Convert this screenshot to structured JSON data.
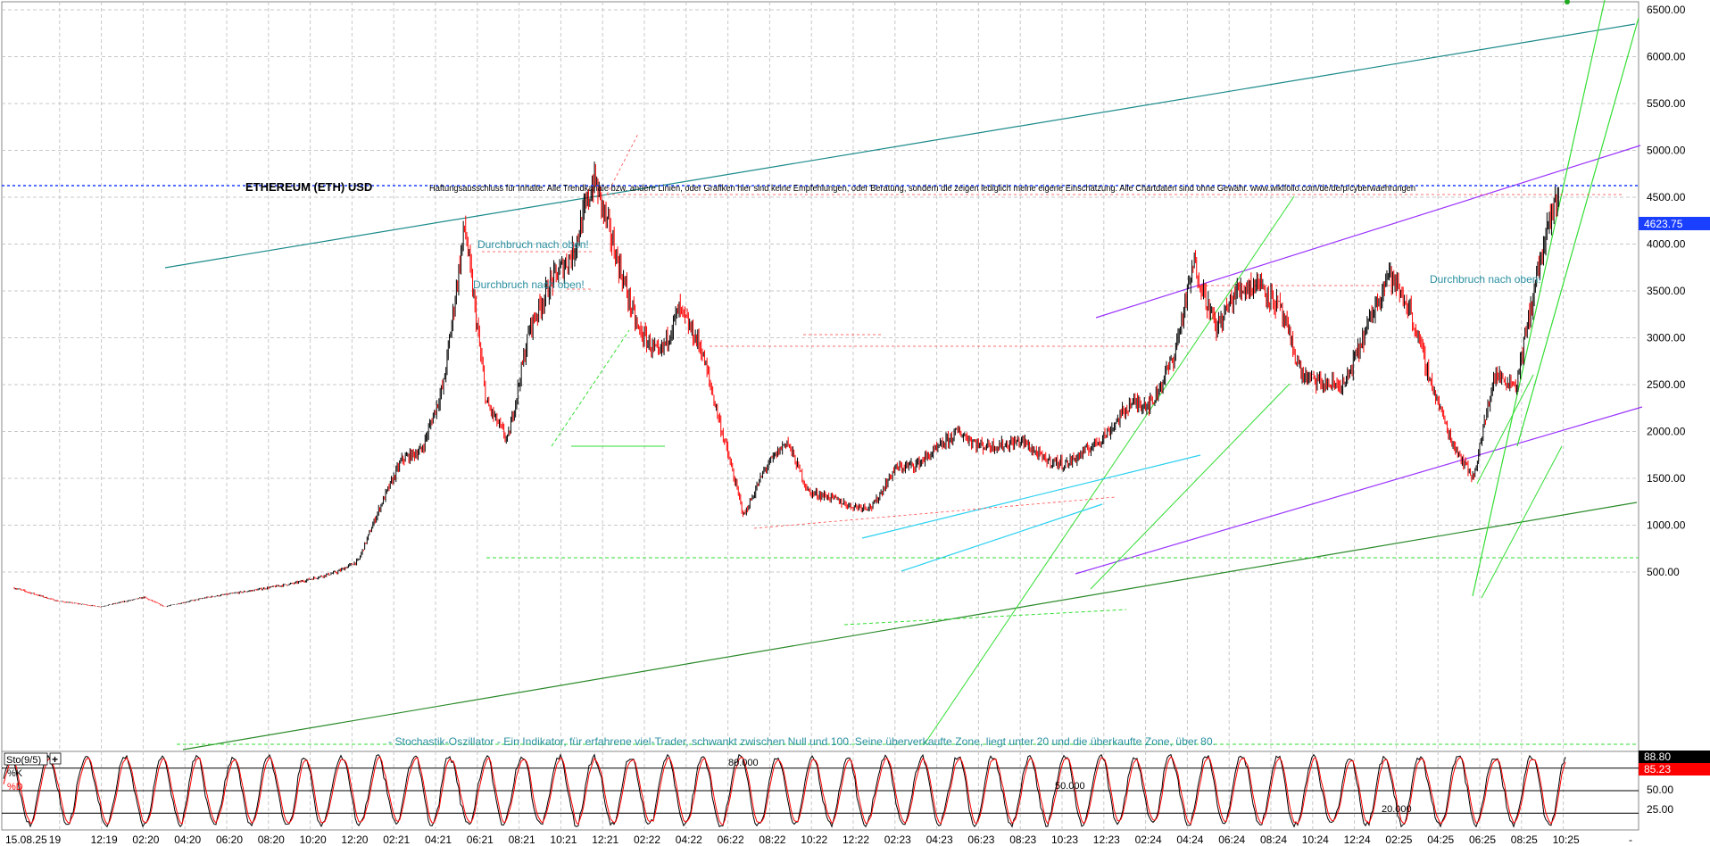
{
  "chart_data": {
    "type": "line",
    "title": "ETHEREUM (ETH) USD",
    "disclaimer": "Haftungsausschluss für Inhalte: Alle Trendkanäle bzw. andere Linien, oder Grafiken hier sind keine Empfehlungen, oder Beratung, sondern die zeigen lediglich meine eigene Einschätzung. Alle Chartdaten sind ohne Gewähr. www.wikifolio.com/de/de/p/cyberwaehrungen",
    "annotations": [
      "Durchbruch nach oben!",
      "Durchbruch nach oben!",
      "Durchbruch nach oben!"
    ],
    "oscillator_note": "- Stochastik-Oszillator - Ein Indikator, für erfahrene viel-Trader, schwankt zwischen Null und 100. Seine überverkaufte Zone, liegt unter 20 und die überkaufte Zone, über 80.",
    "last_price_label": "4623.75",
    "last_price": 4623.75,
    "y_ticks": [
      "6500.00",
      "6000.00",
      "5500.00",
      "5000.00",
      "4500.00",
      "4000.00",
      "3500.00",
      "3000.00",
      "2500.00",
      "2000.00",
      "1500.00",
      "1000.00",
      "500.00"
    ],
    "y_tick_values": [
      6500,
      6000,
      5500,
      5000,
      4500,
      4000,
      3500,
      3000,
      2500,
      2000,
      1500,
      1000,
      500
    ],
    "x_ticks": [
      "15.08.25",
      "19",
      "12:19",
      "02:20",
      "04:20",
      "06:20",
      "08:20",
      "10:20",
      "12:20",
      "02:21",
      "04:21",
      "06:21",
      "08:21",
      "10:21",
      "12:21",
      "02:22",
      "04:22",
      "06:22",
      "08:22",
      "10:22",
      "12:22",
      "02:23",
      "04:23",
      "06:23",
      "08:23",
      "10:23",
      "12:23",
      "02:24",
      "04:24",
      "06:24",
      "08:24",
      "10:24",
      "12:24",
      "02:25",
      "04:25",
      "06:25",
      "08:25",
      "10:25",
      "-"
    ],
    "ylim": [
      0,
      6650
    ],
    "series": [
      {
        "x": [
          "2019-08",
          "2019-10",
          "2019-12",
          "2020-02",
          "2020-03",
          "2020-05",
          "2020-07",
          "2020-09",
          "2020-11",
          "2020-12",
          "2021-01",
          "2021-02",
          "2021-03",
          "2021-04",
          "2021-05",
          "2021-06",
          "2021-07",
          "2021-08",
          "2021-09",
          "2021-10",
          "2021-11",
          "2021-12",
          "2022-01",
          "2022-02",
          "2022-03",
          "2022-04",
          "2022-05",
          "2022-06",
          "2022-07",
          "2022-08",
          "2022-09",
          "2022-10",
          "2022-11",
          "2022-12",
          "2023-01",
          "2023-02",
          "2023-03",
          "2023-04",
          "2023-05",
          "2023-06",
          "2023-07",
          "2023-08",
          "2023-09",
          "2023-10",
          "2023-11",
          "2023-12",
          "2024-01",
          "2024-02",
          "2024-03",
          "2024-04",
          "2024-05",
          "2024-06",
          "2024-07",
          "2024-08",
          "2024-09",
          "2024-10",
          "2024-11",
          "2024-12",
          "2025-01",
          "2025-02",
          "2025-03",
          "2025-04",
          "2025-05",
          "2025-06",
          "2025-07",
          "2025-08"
        ],
        "values": [
          330,
          190,
          130,
          230,
          130,
          230,
          300,
          380,
          500,
          620,
          1200,
          1700,
          1800,
          2500,
          4200,
          2300,
          1900,
          3100,
          3600,
          3900,
          4700,
          3900,
          3100,
          2800,
          3300,
          2900,
          2000,
          1100,
          1600,
          1900,
          1350,
          1300,
          1200,
          1200,
          1600,
          1650,
          1800,
          2000,
          1850,
          1850,
          1900,
          1700,
          1650,
          1800,
          2000,
          2300,
          2300,
          2800,
          3800,
          3100,
          3500,
          3600,
          3300,
          2600,
          2500,
          2500,
          3100,
          3700,
          3300,
          2500,
          1900,
          1500,
          2600,
          2500,
          3700,
          4620
        ]
      }
    ],
    "levels": [
      {
        "label": "80.000",
        "value": 80
      },
      {
        "label": "50.000",
        "value": 50
      },
      {
        "label": "20.000",
        "value": 20
      }
    ],
    "stochastic": {
      "label": "Sto(9/5)",
      "k_label": "%K",
      "d_label": "%D",
      "k_value": "88.80",
      "d_value": "85.23",
      "ticks": [
        "50.00",
        "25.00"
      ]
    }
  },
  "colors": {
    "up": "#000000",
    "down": "#ff0000",
    "last_price": "#1a3fff",
    "channel_teal": "#1b8a8a",
    "channel_purple": "#9a33ff",
    "trend_green": "#2a8a2a",
    "trend_lime": "#33dd33",
    "cyan": "#2ad0f0",
    "annotation": "#2a8fa0"
  }
}
